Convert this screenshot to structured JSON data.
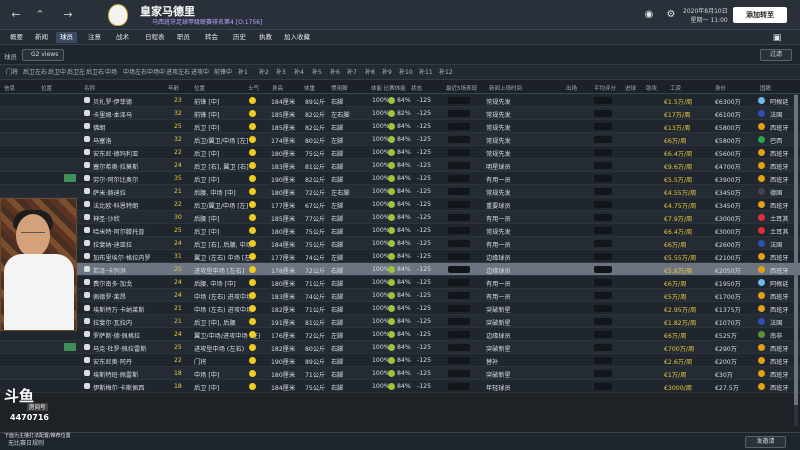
{
  "header": {
    "back_icon": "back-arrow-icon",
    "forward_icon": "forward-arrow-icon",
    "search_icon": "search-icon",
    "club_title": "皇家马德里",
    "club_subtitle": "马西班牙足球甲级联赛排名第4 [O:1756]",
    "date_line_1": "2020年8月10日",
    "date_line_2": "星期一 11:00",
    "continue_label": "添加转至",
    "icons": [
      "ball-icon",
      "gear-icon",
      "fullscreen-icon"
    ]
  },
  "menu": [
    {
      "label": "概要",
      "active": false
    },
    {
      "label": "新闻",
      "active": false
    },
    {
      "label": "球员",
      "active": true
    },
    {
      "label": "注意",
      "active": false
    },
    {
      "label": "战术",
      "active": false
    },
    {
      "label": "日程表",
      "active": false
    },
    {
      "label": "职员",
      "active": false
    },
    {
      "label": "转会",
      "active": false
    },
    {
      "label": "历史",
      "active": false
    },
    {
      "label": "执教",
      "active": false
    },
    {
      "label": "加入收藏",
      "active": false
    }
  ],
  "filters": {
    "squad_label": "球员",
    "view_select": "G2 views",
    "right_select": "过滤"
  },
  "tabs": [
    "门将",
    "后卫左右",
    "后卫中",
    "后卫左",
    "后卫右",
    "中场",
    "中场左右",
    "中场中",
    "进攻左右",
    "进攻中",
    "前锋中",
    "补1",
    "补2",
    "补3",
    "补4",
    "补5",
    "补6",
    "补7",
    "补8",
    "补9",
    "补10",
    "补11",
    "补12"
  ],
  "columns": [
    "信息",
    "位置",
    "名称",
    "年龄",
    "位置",
    "士气",
    "身高",
    "体重",
    "惯用脚",
    "体能 比赛体能",
    "状态",
    "最近5场表现",
    "新闻上场时间",
    "出场",
    "平均评分",
    "进球",
    "助攻",
    "工资",
    "身价",
    "国籍"
  ],
  "rows": [
    {
      "name": "贝扎罗·伊菲德",
      "age": "23",
      "pos": "前锋 [中]",
      "h": "184厘米",
      "w": "89公斤",
      "foot": "右脚",
      "fit": "100%",
      "cond": "84%",
      "form": "-125",
      "role": "常规先发",
      "wage": "€1.5万/周",
      "value": "€6300万",
      "nation": "阿根廷",
      "flag": "#6fb8ea"
    },
    {
      "name": "卡里姆·本泽马",
      "age": "32",
      "pos": "前锋 [中]",
      "h": "185厘米",
      "w": "82公斤",
      "foot": "左右脚",
      "fit": "100%",
      "cond": "82%",
      "form": "-125",
      "role": "常规先发",
      "wage": "€17万/周",
      "value": "€6100万",
      "nation": "法国",
      "flag": "#2f4fb2"
    },
    {
      "name": "佛朗",
      "age": "25",
      "pos": "后卫 [中]",
      "h": "185厘米",
      "w": "82公斤",
      "foot": "右脚",
      "fit": "100%",
      "cond": "84%",
      "form": "-125",
      "role": "常规先发",
      "wage": "€13万/周",
      "value": "€5800万",
      "nation": "西班牙",
      "flag": "#e2a017"
    },
    {
      "name": "马塞洛",
      "age": "32",
      "pos": "后卫/翼卫/中场 [左]",
      "h": "174厘米",
      "w": "80公斤",
      "foot": "左脚",
      "fit": "100%",
      "cond": "84%",
      "form": "-125",
      "role": "常规先发",
      "wage": "€6万/周",
      "value": "€5800万",
      "nation": "巴西",
      "flag": "#2da44e"
    },
    {
      "name": "安东尼·德玛利亚",
      "age": "22",
      "pos": "后卫 [中]",
      "h": "180厘米",
      "w": "75公斤",
      "foot": "右脚",
      "fit": "100%",
      "cond": "84%",
      "form": "-125",
      "role": "常规先发",
      "wage": "€6.4万/周",
      "value": "€5600万",
      "nation": "西班牙",
      "flag": "#e2a017"
    },
    {
      "name": "塞尔希奥·拉莫斯",
      "age": "24",
      "pos": "后卫 [右], 翼卫 [右]",
      "h": "183厘米",
      "w": "81公斤",
      "foot": "右脚",
      "fit": "100%",
      "cond": "84%",
      "form": "-125",
      "role": "明星球员",
      "wage": "€9.6万/周",
      "value": "€4700万",
      "nation": "西班牙",
      "flag": "#e2a017"
    },
    {
      "name": "劳尔·阿尔比奥尔",
      "age": "35",
      "pos": "后卫 [中]",
      "h": "190厘米",
      "w": "82公斤",
      "foot": "右脚",
      "fit": "100%",
      "cond": "84%",
      "form": "-125",
      "role": "有用一员",
      "wage": "€5.5万/周",
      "value": "€3900万",
      "nation": "西班牙",
      "flag": "#e2a017"
    },
    {
      "name": "萨米·赫迪拉",
      "age": "21",
      "pos": "后腰, 中场 [中]",
      "h": "180厘米",
      "w": "72公斤",
      "foot": "左右脚",
      "fit": "100%",
      "cond": "84%",
      "form": "-125",
      "role": "常规先发",
      "wage": "€4.55万/周",
      "value": "€3450万",
      "nation": "德国",
      "flag": "#444"
    },
    {
      "name": "法比欧·科恩特朗",
      "age": "22",
      "pos": "后卫/翼卫/中场 [左]",
      "h": "177厘米",
      "w": "67公斤",
      "foot": "左脚",
      "fit": "100%",
      "cond": "84%",
      "form": "-125",
      "role": "重要球员",
      "wage": "€4.75万/周",
      "value": "€3450万",
      "nation": "西班牙",
      "flag": "#e2a017"
    },
    {
      "name": "神圣·沙欣",
      "age": "30",
      "pos": "后腰 [中]",
      "h": "185厘米",
      "w": "77公斤",
      "foot": "右脚",
      "fit": "100%",
      "cond": "84%",
      "form": "-125",
      "role": "有用一员",
      "wage": "€7.9万/周",
      "value": "€3000万",
      "nation": "土耳其",
      "flag": "#d8323c"
    },
    {
      "name": "哈米特·阿尔滕托普",
      "age": "25",
      "pos": "后卫 [中]",
      "h": "180厘米",
      "w": "75公斤",
      "foot": "右脚",
      "fit": "100%",
      "cond": "84%",
      "form": "-125",
      "role": "常规先发",
      "wage": "€6.4万/周",
      "value": "€3000万",
      "nation": "土耳其",
      "flag": "#d8323c"
    },
    {
      "name": "拉斐纳·迪亚拉",
      "age": "24",
      "pos": "后卫 [右], 后腰, 中场",
      "h": "184厘米",
      "w": "75公斤",
      "foot": "右脚",
      "fit": "100%",
      "cond": "84%",
      "form": "-125",
      "role": "有用一员",
      "wage": "€6万/周",
      "value": "€2600万",
      "nation": "法国",
      "flag": "#2f4fb2"
    },
    {
      "name": "加布里埃尔·格拉内罗",
      "age": "31",
      "pos": "翼卫 (左右) 中场 [左]",
      "h": "177厘米",
      "w": "74公斤",
      "foot": "左脚",
      "fit": "100%",
      "cond": "84%",
      "form": "-125",
      "role": "边缘球员",
      "wage": "€5.55万/周",
      "value": "€2100万",
      "nation": "西班牙",
      "flag": "#e2a017"
    },
    {
      "name": "若泽·卡列洪",
      "age": "25",
      "pos": "进攻型中场 [左右]",
      "h": "178厘米",
      "w": "72公斤",
      "foot": "右脚",
      "fit": "100%",
      "cond": "84%",
      "form": "-125",
      "role": "边缘球员",
      "wage": "€5.8万/周",
      "value": "€2050万",
      "nation": "西班牙",
      "flag": "#e2a017",
      "selected": true
    },
    {
      "name": "费尔南多·加戈",
      "age": "24",
      "pos": "后腰, 中场 [中]",
      "h": "180厘米",
      "w": "71公斤",
      "foot": "右脚",
      "fit": "100%",
      "cond": "84%",
      "form": "-125",
      "role": "有用一员",
      "wage": "€6万/周",
      "value": "€1950万",
      "nation": "阿根廷",
      "flag": "#6fb8ea"
    },
    {
      "name": "佩德罗·莱昂",
      "age": "24",
      "pos": "中场 (左右) 进攻中场",
      "h": "183厘米",
      "w": "74公斤",
      "foot": "右脚",
      "fit": "100%",
      "cond": "84%",
      "form": "-125",
      "role": "有用一员",
      "wage": "€5万/周",
      "value": "€1700万",
      "nation": "西班牙",
      "flag": "#e2a017"
    },
    {
      "name": "埃斯特万·卡纳莱斯",
      "age": "21",
      "pos": "中场 (左右) 进攻中场",
      "h": "182厘米",
      "w": "71公斤",
      "foot": "右脚",
      "fit": "100%",
      "cond": "84%",
      "form": "-125",
      "role": "突破新星",
      "wage": "€2.95万/周",
      "value": "€1375万",
      "nation": "西班牙",
      "flag": "#e2a017"
    },
    {
      "name": "拉斐尔·瓦拉内",
      "age": "21",
      "pos": "后卫 [中], 后腰",
      "h": "191厘米",
      "w": "81公斤",
      "foot": "右脚",
      "fit": "100%",
      "cond": "84%",
      "form": "-125",
      "role": "突破新星",
      "wage": "€1.82万/周",
      "value": "€1070万",
      "nation": "法国",
      "flag": "#2f4fb2"
    },
    {
      "name": "罗萨斯·德·佩格拉",
      "age": "24",
      "pos": "翼卫/中场/进攻中场 (左)",
      "h": "176厘米",
      "w": "72公斤",
      "foot": "左脚",
      "fit": "100%",
      "cond": "84%",
      "form": "-125",
      "role": "边缘球员",
      "wage": "€6万/周",
      "value": "€525万",
      "nation": "南非",
      "flag": "#5b8f3b"
    },
    {
      "name": "马克·杜罗·佩拉雷斯",
      "age": "25",
      "pos": "进攻型中场 (左右)",
      "h": "182厘米",
      "w": "80公斤",
      "foot": "右脚",
      "fit": "100%",
      "cond": "84%",
      "form": "-125",
      "role": "突破新星",
      "wage": "€700万/周",
      "value": "€290万",
      "nation": "西班牙",
      "flag": "#e2a017"
    },
    {
      "name": "安东尼奥·阿丹",
      "age": "22",
      "pos": "门将",
      "h": "190厘米",
      "w": "89公斤",
      "foot": "右脚",
      "fit": "100%",
      "cond": "84%",
      "form": "-125",
      "role": "替补",
      "wage": "€2.6万/周",
      "value": "€200万",
      "nation": "西班牙",
      "flag": "#e2a017"
    },
    {
      "name": "埃斯特班·佩雷斯",
      "age": "18",
      "pos": "中场 [中]",
      "h": "180厘米",
      "w": "71公斤",
      "foot": "右脚",
      "fit": "100%",
      "cond": "84%",
      "form": "-125",
      "role": "突破新星",
      "wage": "€1万/周",
      "value": "€30万",
      "nation": "西班牙",
      "flag": "#e2a017"
    },
    {
      "name": "伊斯梅尔·卡斯佩西",
      "age": "18",
      "pos": "后卫 [中]",
      "h": "184厘米",
      "w": "75公斤",
      "foot": "右脚",
      "fit": "100%",
      "cond": "84%",
      "form": "-125",
      "role": "年轻球员",
      "wage": "€3000/周",
      "value": "€27.5万",
      "nation": "西班牙",
      "flag": "#e2a017"
    }
  ],
  "overlay": {
    "logo_text": "斗鱼",
    "room_label": "房间号",
    "room_number": "4470716",
    "footer_text": "下面为主播打法配置/推荐位置"
  },
  "bottom": {
    "status_text": "无比赛日规则",
    "button_label": "发邀请"
  },
  "colors": {
    "topbar": "#2a3039",
    "accent": "#b7a7ff",
    "selected_row": "#6b7480"
  }
}
